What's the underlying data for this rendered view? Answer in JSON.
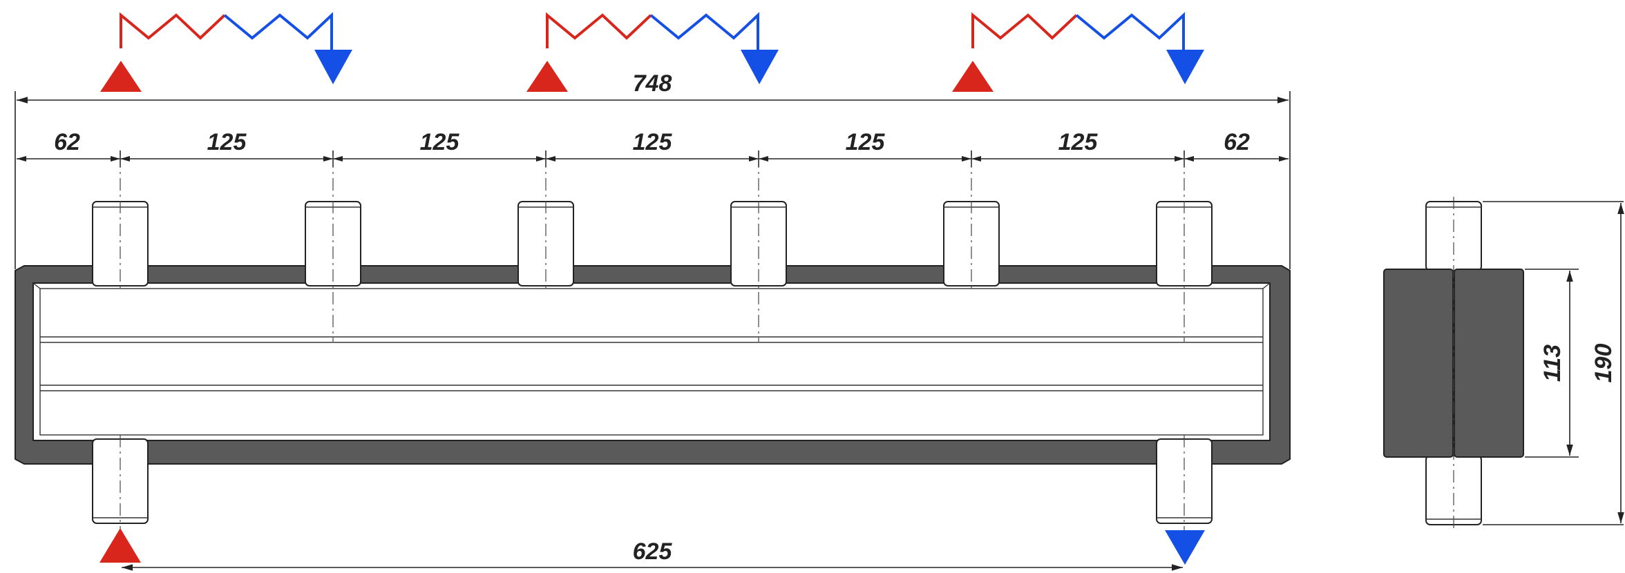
{
  "dimensions": {
    "overall_length": "748",
    "segments": [
      "62",
      "125",
      "125",
      "125",
      "125",
      "125",
      "62"
    ],
    "lower_span": "625",
    "side_body_height": "113",
    "side_total_height": "190"
  },
  "colors": {
    "hot": "#d9261c",
    "cold": "#1450e6",
    "body_dark": "#5a5a5a",
    "line": "#222222"
  },
  "icons": {
    "supply_arrow": "red-triangle-up-icon",
    "return_arrow": "blue-triangle-down-icon",
    "circuit": "zigzag-circuit-icon"
  }
}
